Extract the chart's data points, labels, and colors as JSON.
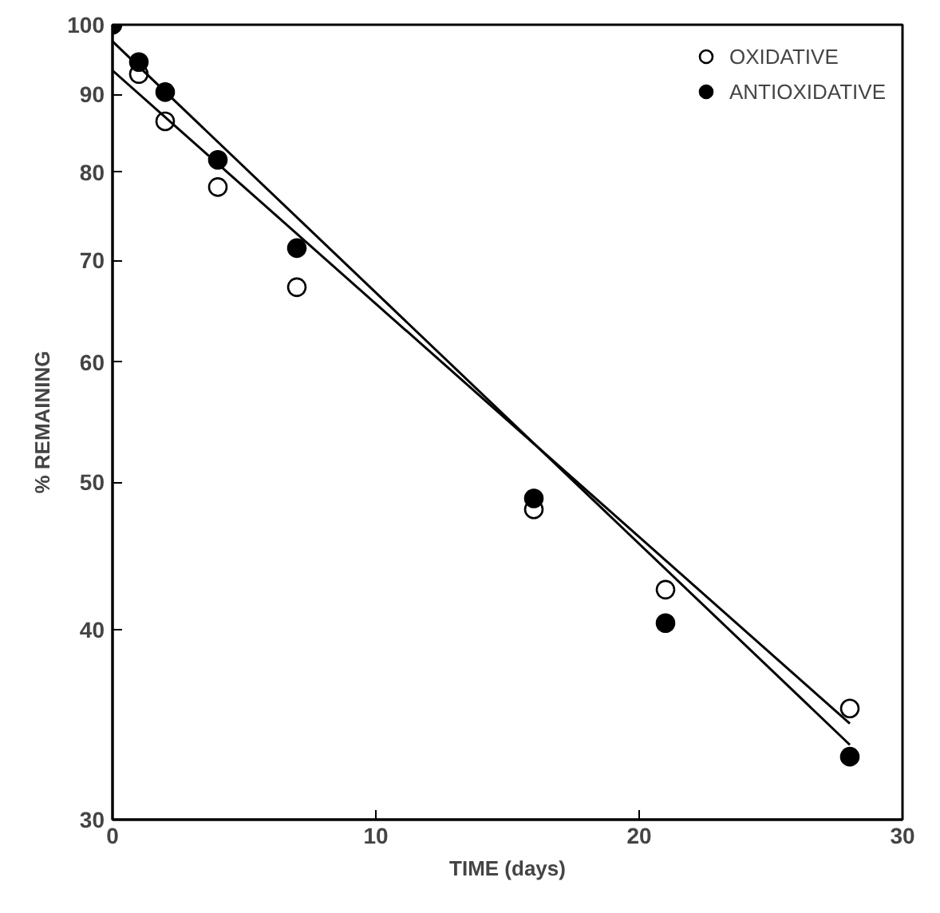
{
  "chart_data": {
    "type": "scatter",
    "xlabel": "TIME (days)",
    "ylabel": "% REMAINING",
    "log": "y",
    "xlim": [
      0,
      30
    ],
    "ylim": [
      30,
      100
    ],
    "xticks": [
      0,
      10,
      20,
      30
    ],
    "yticks": [
      30,
      40,
      50,
      60,
      70,
      80,
      90,
      100
    ],
    "legend": "top right",
    "grid": false,
    "series": [
      {
        "name": "OXIDATIVE",
        "color": "#ffffff",
        "marker": "circle",
        "x": [
          1,
          2,
          4,
          7,
          16,
          21,
          28
        ],
        "values": [
          92.8,
          86.4,
          78.2,
          67.2,
          48.0,
          42.5,
          35.5
        ]
      },
      {
        "name": "ANTIOXIDATIVE",
        "color": "#000000",
        "marker": "circle",
        "x": [
          0,
          1,
          2,
          4,
          7,
          16,
          21,
          28
        ],
        "values": [
          100,
          94.5,
          90.3,
          81.5,
          71.3,
          48.8,
          40.4,
          33.0
        ]
      },
      {
        "type": "line",
        "color": "#000000",
        "marker": "none",
        "x": [
          0,
          28
        ],
        "values": [
          93.3,
          34.7
        ]
      },
      {
        "type": "line",
        "color": "#000000",
        "marker": "none",
        "x": [
          0,
          28
        ],
        "values": [
          97.5,
          33.6
        ]
      }
    ]
  }
}
